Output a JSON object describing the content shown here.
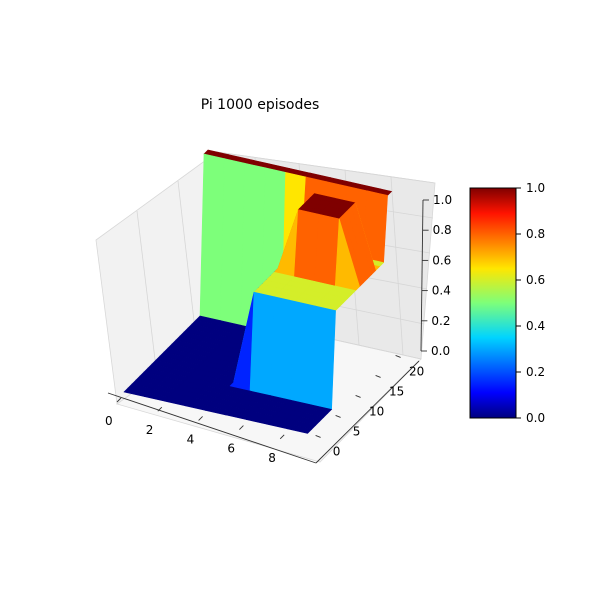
{
  "chart_data": {
    "type": "surface3d",
    "title": "Pi 1000 episodes",
    "colormap": "jet",
    "x_ticks": [
      0,
      2,
      4,
      6,
      8
    ],
    "y_ticks": [
      0,
      5,
      10,
      15,
      20
    ],
    "z_ticks": [
      0.0,
      0.2,
      0.4,
      0.6,
      0.8,
      1.0
    ],
    "x_tick_labels": [
      "0",
      "2",
      "4",
      "6",
      "8"
    ],
    "y_tick_labels": [
      "0",
      "5",
      "10",
      "15",
      "20"
    ],
    "z_tick_labels": [
      "0.0",
      "0.2",
      "0.4",
      "0.6",
      "0.8",
      "1.0"
    ],
    "xlim": [
      0,
      9
    ],
    "ylim": [
      0,
      21
    ],
    "zlim": [
      0,
      1
    ],
    "colorbar": {
      "range": [
        0,
        1
      ],
      "ticks": [
        "0.0",
        "0.2",
        "0.4",
        "0.6",
        "0.8",
        "1.0"
      ]
    },
    "surface_regions": [
      {
        "region": "x 0-4, all y",
        "value": 0.0
      },
      {
        "region": "x 5-9, y 0-6",
        "value": 0.0
      },
      {
        "region": "x 5-9, y 7-21 (wall front)",
        "value": 0.6
      },
      {
        "region": "x 6-8, y 13-17 (raised block)",
        "value": 1.0
      },
      {
        "region": "x 4-9, y 20-21 (top edge)",
        "value": 1.0
      }
    ]
  }
}
